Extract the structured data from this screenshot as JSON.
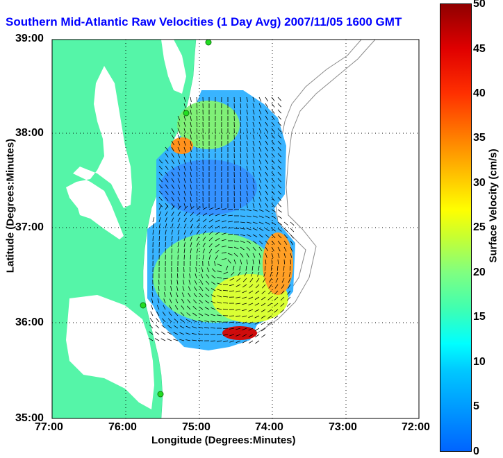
{
  "title": "Southern Mid-Atlantic Raw Velocities (1 Day Avg) 2007/11/05 1600 GMT",
  "x_axis": {
    "label": "Longitude (Degrees:Minutes)",
    "ticks": [
      "77:00",
      "76:00",
      "75:00",
      "74:00",
      "73:00",
      "72:00"
    ],
    "values": [
      -77,
      -76,
      -75,
      -74,
      -73,
      -72
    ]
  },
  "y_axis": {
    "label": "Latitude (Degrees:Minutes)",
    "ticks": [
      "39:00",
      "38:00",
      "37:00",
      "36:00",
      "35:00"
    ],
    "values": [
      39,
      38,
      37,
      36,
      35
    ]
  },
  "colorbar": {
    "label": "Surface Velocity (cm/s)",
    "ticks": [
      "50",
      "45",
      "40",
      "35",
      "30",
      "25",
      "20",
      "15",
      "10",
      "5",
      "0"
    ],
    "range": [
      0,
      50
    ]
  },
  "colors": {
    "land": "#55f5a8",
    "water": "#ffffff",
    "bathymetry": "#8a8a8a",
    "grid": "#000000",
    "title": "#0000ff",
    "station": "#22dd22"
  },
  "map_extent": {
    "lon": [
      -77,
      -72
    ],
    "lat": [
      35,
      39
    ]
  },
  "grid": "dotted",
  "stations": [
    {
      "lon": -74.88,
      "lat": 39.0
    },
    {
      "lon": -75.1,
      "lat": 38.2
    },
    {
      "lon": -75.8,
      "lat": 36.2
    },
    {
      "lon": -75.55,
      "lat": 35.23
    }
  ]
}
